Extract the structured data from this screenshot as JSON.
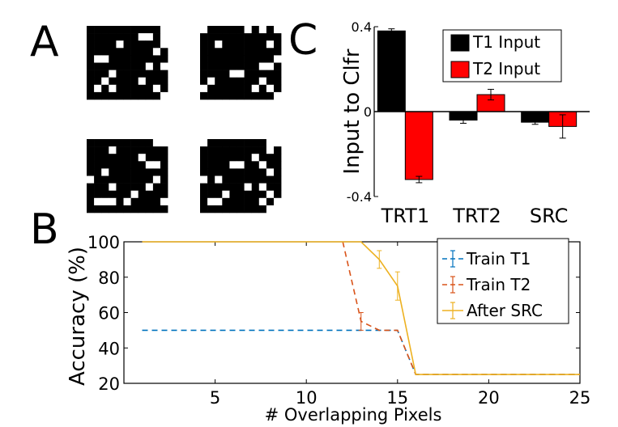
{
  "panels": {
    "a": "A",
    "b": "B",
    "c": "C"
  },
  "panel_a": {
    "grids": [
      {
        "rows": [
          "11111111110",
          "11111110010",
          "11110111110",
          "11111111101",
          "10011111111",
          "11111111010",
          "11101111111",
          "11011110111",
          "10101111101",
          "11111111110"
        ]
      },
      {
        "rows": [
          "01111101010",
          "11111111111",
          "11011111101",
          "11111111111",
          "11111111110",
          "11111111001",
          "11110011111",
          "10111111011",
          "01111110101",
          "11111111110"
        ]
      },
      {
        "rows": [
          "11111111100",
          "11101111111",
          "11111110111",
          "11111111001",
          "11011111111",
          "01111111101",
          "11101111011",
          "11111101111",
          "10001011110",
          "11111111111"
        ]
      },
      {
        "rows": [
          "01111111100",
          "11111111101",
          "11111110111",
          "11110011011",
          "11111111101",
          "01011111111",
          "11111101011",
          "11101111101",
          "10011111010",
          "11111111100"
        ]
      }
    ]
  },
  "chart_data": [
    {
      "type": "bar",
      "panel": "C",
      "categories": [
        "TRT1",
        "TRT2",
        "SRC"
      ],
      "ylabel": "Input to Clfr",
      "ylim": [
        -0.4,
        0.4
      ],
      "yticks": [
        -0.4,
        0,
        0.4
      ],
      "ytick_labels": [
        "-0.4",
        "0",
        "0.4"
      ],
      "legend_position": "top-right",
      "series": [
        {
          "name": "T1 Input",
          "color": "#000000",
          "values": [
            0.38,
            -0.04,
            -0.05
          ],
          "errors": [
            0.01,
            0.015,
            0.01
          ]
        },
        {
          "name": "T2 Input",
          "color": "#ff0000",
          "values": [
            -0.32,
            0.08,
            -0.07
          ],
          "errors": [
            0.015,
            0.025,
            0.055
          ]
        }
      ]
    },
    {
      "type": "line",
      "panel": "B",
      "xlabel": "# Overlapping Pixels",
      "ylabel": "Accuracy (%)",
      "xlim": [
        0,
        25
      ],
      "ylim": [
        20,
        100
      ],
      "xticks": [
        5,
        10,
        15,
        20,
        25
      ],
      "yticks": [
        20,
        40,
        60,
        80,
        100
      ],
      "legend_position": "top-right",
      "series": [
        {
          "name": "Train T1",
          "color": "#0072bd",
          "dash": true,
          "x": [
            1,
            13,
            14,
            15,
            16,
            25
          ],
          "y": [
            50,
            50,
            50,
            50,
            25,
            25
          ],
          "errors": [
            0,
            0,
            0,
            0,
            0,
            0
          ]
        },
        {
          "name": "Train T2",
          "color": "#d95319",
          "dash": true,
          "x": [
            1,
            12,
            13,
            14,
            15,
            16,
            25
          ],
          "y": [
            null,
            100,
            55,
            50,
            50,
            25,
            25
          ],
          "errors": [
            0,
            0,
            5,
            0,
            0,
            0,
            0
          ]
        },
        {
          "name": "After SRC",
          "color": "#edb120",
          "dash": false,
          "x": [
            1,
            13,
            14,
            15,
            16,
            25
          ],
          "y": [
            100,
            100,
            90,
            75,
            25,
            25
          ],
          "errors": [
            0,
            0,
            5,
            8,
            0,
            0
          ]
        }
      ]
    }
  ]
}
